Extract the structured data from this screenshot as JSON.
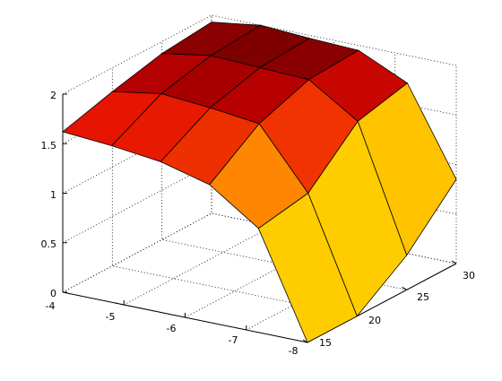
{
  "chart_data": {
    "type": "surface",
    "title": "",
    "xlabel": "",
    "ylabel": "",
    "zlabel": "",
    "x_axis": {
      "range": [
        -8,
        -4
      ],
      "ticks": [
        "-4",
        "-5",
        "-6",
        "-7",
        "-8"
      ]
    },
    "y_axis": {
      "range": [
        15,
        30
      ],
      "ticks": [
        "15",
        "20",
        "25",
        "30"
      ]
    },
    "z_axis": {
      "range": [
        0,
        2
      ],
      "ticks": [
        "0",
        "0.5",
        "1",
        "1.5",
        "2"
      ]
    },
    "grid": true,
    "box": false,
    "colormap": "hot",
    "colors": {
      "axis": "#000000",
      "grid": "#000000",
      "edge": "#000000",
      "background": "#ffffff"
    },
    "surface_z": [
      [
        1.62,
        1.76,
        1.88,
        1.93
      ],
      [
        1.58,
        1.84,
        1.96,
        2.0
      ],
      [
        1.52,
        1.8,
        1.94,
        1.97
      ],
      [
        1.39,
        1.74,
        1.92,
        1.95
      ],
      [
        1.05,
        1.14,
        1.6,
        1.72
      ],
      [
        0.0,
        0.0,
        0.35,
        0.85
      ]
    ]
  }
}
